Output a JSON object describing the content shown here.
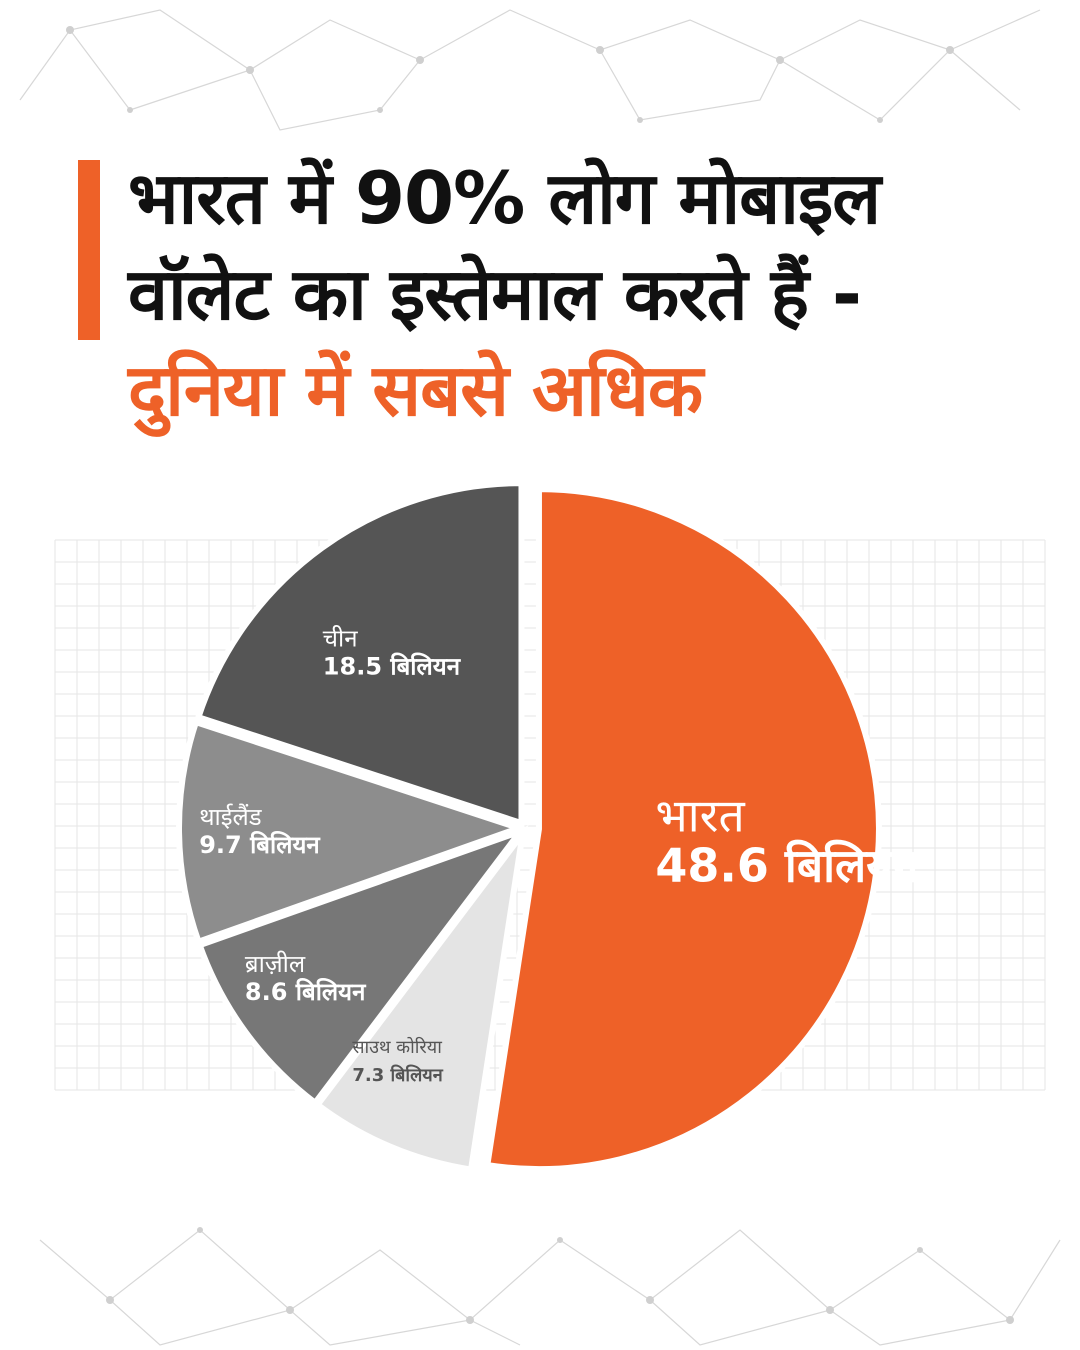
{
  "title": {
    "line1": "भारत में 90% लोग मोबाइल",
    "line2": "वॉलेट का इस्तेमाल करते हैं -",
    "line3": "दुनिया में सबसे अधिक"
  },
  "colors": {
    "accent": "#ee6128",
    "title_text": "#111111",
    "grid": "#e6e6e6"
  },
  "chart_data": {
    "type": "pie",
    "slices": [
      {
        "name": "भारत",
        "value": 48.6,
        "value_label": "48.6 बिलियन",
        "color": "#ee6128",
        "exploded": true
      },
      {
        "name": "साउथ कोरिया",
        "value": 7.3,
        "value_label": "7.3 बिलियन",
        "color": "#e4e4e4"
      },
      {
        "name": "ब्राज़ील",
        "value": 8.6,
        "value_label": "8.6 बिलियन",
        "color": "#777777"
      },
      {
        "name": "थाईलैंड",
        "value": 9.7,
        "value_label": "9.7 बिलियन",
        "color": "#8d8d8d"
      },
      {
        "name": "चीन",
        "value": 18.5,
        "value_label": "18.5 बिलियन",
        "color": "#555555"
      }
    ],
    "grid": true,
    "legend": false
  }
}
